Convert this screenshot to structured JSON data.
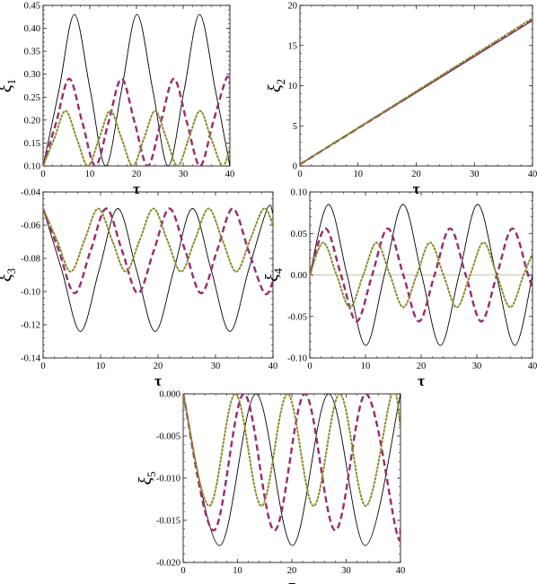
{
  "chart_data": [
    {
      "type": "line",
      "xlabel": "τ",
      "ylabel": "ξ1",
      "ylabel_main": "ξ",
      "ylabel_sub": "1",
      "xlim": [
        0,
        40
      ],
      "ylim": [
        0.1,
        0.45
      ],
      "xticks": [
        0,
        10,
        20,
        30,
        40
      ],
      "xtick_labels": [
        "0",
        "10",
        "20",
        "30",
        "40"
      ],
      "yticks": [
        0.1,
        0.15,
        0.2,
        0.25,
        0.3,
        0.35,
        0.4,
        0.45
      ],
      "ytick_labels": [
        "0.10",
        "0.15",
        "0.20",
        "0.25",
        "0.30",
        "0.35",
        "0.40",
        "0.45"
      ],
      "series": [
        {
          "style": "solid",
          "color": "#000000",
          "x": [
            0,
            3.4,
            6.7,
            10.1,
            13.4,
            16.8,
            20.1,
            23.5,
            26.8,
            30.2,
            33.5,
            36.9,
            40
          ],
          "y": [
            0.1,
            0.265,
            0.43,
            0.265,
            0.1,
            0.265,
            0.43,
            0.265,
            0.1,
            0.265,
            0.43,
            0.265,
            0.1
          ]
        },
        {
          "style": "dashed",
          "color": "#9b2a6e",
          "x": [
            0,
            2.8,
            5.6,
            8.4,
            11.2,
            14.0,
            16.8,
            19.6,
            22.4,
            25.2,
            28.0,
            30.8,
            33.6,
            36.4,
            39.2,
            40
          ],
          "y": [
            0.1,
            0.195,
            0.29,
            0.195,
            0.1,
            0.195,
            0.29,
            0.195,
            0.1,
            0.195,
            0.29,
            0.195,
            0.1,
            0.195,
            0.29,
            0.28
          ]
        },
        {
          "style": "dotted",
          "color": "#8a8a2a",
          "x": [
            0,
            2.4,
            4.8,
            7.2,
            9.6,
            12.0,
            14.4,
            16.8,
            19.2,
            21.6,
            24.0,
            26.4,
            28.8,
            31.2,
            33.6,
            36.0,
            38.4,
            40
          ],
          "y": [
            0.1,
            0.16,
            0.22,
            0.16,
            0.1,
            0.16,
            0.22,
            0.16,
            0.1,
            0.16,
            0.22,
            0.16,
            0.1,
            0.16,
            0.22,
            0.16,
            0.1,
            0.14
          ]
        }
      ]
    },
    {
      "type": "line",
      "xlabel": "τ",
      "ylabel": "ξ2",
      "ylabel_main": "ξ",
      "ylabel_sub": "2",
      "xlim": [
        0,
        40
      ],
      "ylim": [
        0,
        20
      ],
      "xticks": [
        0,
        10,
        20,
        30,
        40
      ],
      "xtick_labels": [
        "0",
        "10",
        "20",
        "30",
        "40"
      ],
      "yticks": [
        0,
        5,
        10,
        15,
        20
      ],
      "ytick_labels": [
        "0",
        "5",
        "10",
        "15",
        "20"
      ],
      "series": [
        {
          "style": "solid",
          "color": "#000000",
          "x": [
            0,
            40
          ],
          "y": [
            0.2,
            18.1
          ]
        },
        {
          "style": "dashed",
          "color": "#9b2a6e",
          "x": [
            0,
            40
          ],
          "y": [
            0.2,
            18.2
          ]
        },
        {
          "style": "dotted",
          "color": "#8a8a2a",
          "x": [
            0,
            40
          ],
          "y": [
            0.2,
            18.4
          ]
        }
      ]
    },
    {
      "type": "line",
      "xlabel": "τ",
      "ylabel": "ξ3",
      "ylabel_main": "ξ",
      "ylabel_sub": "3",
      "xlim": [
        0,
        40
      ],
      "ylim": [
        -0.14,
        -0.04
      ],
      "xticks": [
        0,
        10,
        20,
        30,
        40
      ],
      "xtick_labels": [
        "0",
        "10",
        "20",
        "30",
        "40"
      ],
      "yticks": [
        -0.14,
        -0.12,
        -0.1,
        -0.08,
        -0.06,
        -0.04
      ],
      "ytick_labels": [
        "-0.14",
        "-0.12",
        "-0.10",
        "-0.08",
        "-0.06",
        "-0.04"
      ],
      "series": [
        {
          "style": "solid",
          "color": "#000000",
          "x": [
            0,
            3.25,
            6.5,
            9.75,
            13.0,
            16.25,
            19.5,
            22.75,
            26.0,
            29.25,
            32.5,
            35.75,
            39.0,
            40
          ],
          "y": [
            -0.05,
            -0.087,
            -0.124,
            -0.087,
            -0.05,
            -0.087,
            -0.124,
            -0.087,
            -0.05,
            -0.087,
            -0.124,
            -0.087,
            -0.05,
            -0.053
          ]
        },
        {
          "style": "dashed",
          "color": "#9b2a6e",
          "x": [
            0,
            2.75,
            5.5,
            8.25,
            11.0,
            13.75,
            16.5,
            19.25,
            22.0,
            24.75,
            27.5,
            30.25,
            33.0,
            35.75,
            38.5,
            40
          ],
          "y": [
            -0.05,
            -0.0755,
            -0.101,
            -0.0755,
            -0.05,
            -0.0755,
            -0.101,
            -0.0755,
            -0.05,
            -0.0755,
            -0.101,
            -0.0755,
            -0.05,
            -0.0755,
            -0.101,
            -0.094
          ]
        },
        {
          "style": "dotted",
          "color": "#8a8a2a",
          "x": [
            0,
            2.4,
            4.8,
            7.2,
            9.6,
            12.0,
            14.4,
            16.8,
            19.2,
            21.6,
            24.0,
            26.4,
            28.8,
            31.2,
            33.6,
            36.0,
            38.4,
            40
          ],
          "y": [
            -0.05,
            -0.069,
            -0.088,
            -0.069,
            -0.05,
            -0.069,
            -0.088,
            -0.069,
            -0.05,
            -0.069,
            -0.088,
            -0.069,
            -0.05,
            -0.069,
            -0.088,
            -0.069,
            -0.05,
            -0.06
          ]
        }
      ]
    },
    {
      "type": "line",
      "xlabel": "τ",
      "ylabel": "ξ4",
      "ylabel_main": "ξ",
      "ylabel_sub": "4",
      "xlim": [
        0,
        40
      ],
      "ylim": [
        -0.1,
        0.1
      ],
      "xticks": [
        0,
        10,
        20,
        30,
        40
      ],
      "xtick_labels": [
        "0",
        "10",
        "20",
        "30",
        "40"
      ],
      "yticks": [
        -0.1,
        -0.05,
        0.0,
        0.05,
        0.1
      ],
      "ytick_labels": [
        "-0.10",
        "-0.05",
        "0.00",
        "0.05",
        "0.10"
      ],
      "zero_line": true,
      "series": [
        {
          "style": "solid",
          "color": "#000000",
          "x": [
            0,
            3.35,
            6.7,
            10.05,
            13.4,
            16.75,
            20.1,
            23.45,
            26.8,
            30.15,
            33.5,
            36.85,
            40
          ],
          "y": [
            0,
            0.085,
            0,
            -0.085,
            0,
            0.085,
            0,
            -0.085,
            0,
            0.085,
            0,
            -0.085,
            0
          ]
        },
        {
          "style": "dashed",
          "color": "#9b2a6e",
          "x": [
            0,
            2.8,
            5.6,
            8.4,
            11.2,
            14.0,
            16.8,
            19.6,
            22.4,
            25.2,
            28.0,
            30.8,
            33.6,
            36.4,
            39.2,
            40
          ],
          "y": [
            0,
            0.056,
            0,
            -0.056,
            0,
            0.056,
            0,
            -0.056,
            0,
            0.056,
            0,
            -0.056,
            0,
            0.056,
            0,
            -0.016
          ]
        },
        {
          "style": "dotted",
          "color": "#8a8a2a",
          "x": [
            0,
            2.4,
            4.8,
            7.2,
            9.6,
            12.0,
            14.4,
            16.8,
            19.2,
            21.6,
            24.0,
            26.4,
            28.8,
            31.2,
            33.6,
            36.0,
            38.4,
            40
          ],
          "y": [
            0,
            0.039,
            0,
            -0.039,
            0,
            0.039,
            0,
            -0.039,
            0,
            0.039,
            0,
            -0.039,
            0,
            0.039,
            0,
            -0.039,
            0,
            0.026
          ]
        }
      ]
    },
    {
      "type": "line",
      "xlabel": "τ",
      "ylabel": "ξ5",
      "ylabel_main": "ξ",
      "ylabel_sub": "5",
      "xlim": [
        0,
        40
      ],
      "ylim": [
        -0.02,
        0.0
      ],
      "xticks": [
        0,
        10,
        20,
        30,
        40
      ],
      "xtick_labels": [
        "0",
        "10",
        "20",
        "30",
        "40"
      ],
      "yticks": [
        -0.02,
        -0.015,
        -0.01,
        -0.005,
        0.0
      ],
      "ytick_labels": [
        "-0.020",
        "-0.015",
        "-0.010",
        "-0.005",
        "0.000"
      ],
      "series": [
        {
          "style": "solid",
          "color": "#000000",
          "x": [
            0,
            6.7,
            13.4,
            20.1,
            26.8,
            33.5,
            40
          ],
          "y": [
            0,
            -0.018,
            0,
            -0.018,
            0,
            -0.018,
            0
          ]
        },
        {
          "style": "dashed",
          "color": "#9b2a6e",
          "x": [
            0,
            5.6,
            11.2,
            16.8,
            22.4,
            28.0,
            33.6,
            39.2,
            40
          ],
          "y": [
            0,
            -0.0162,
            0,
            -0.0162,
            0,
            -0.0162,
            0,
            -0.0162,
            -0.0162
          ]
        },
        {
          "style": "dotted",
          "color": "#8a8a2a",
          "x": [
            0,
            4.8,
            9.6,
            14.4,
            19.2,
            24.0,
            28.8,
            33.6,
            38.4,
            40
          ],
          "y": [
            0,
            -0.0133,
            0,
            -0.0133,
            0,
            -0.0133,
            0,
            -0.0133,
            0,
            -0.004
          ]
        }
      ]
    }
  ]
}
